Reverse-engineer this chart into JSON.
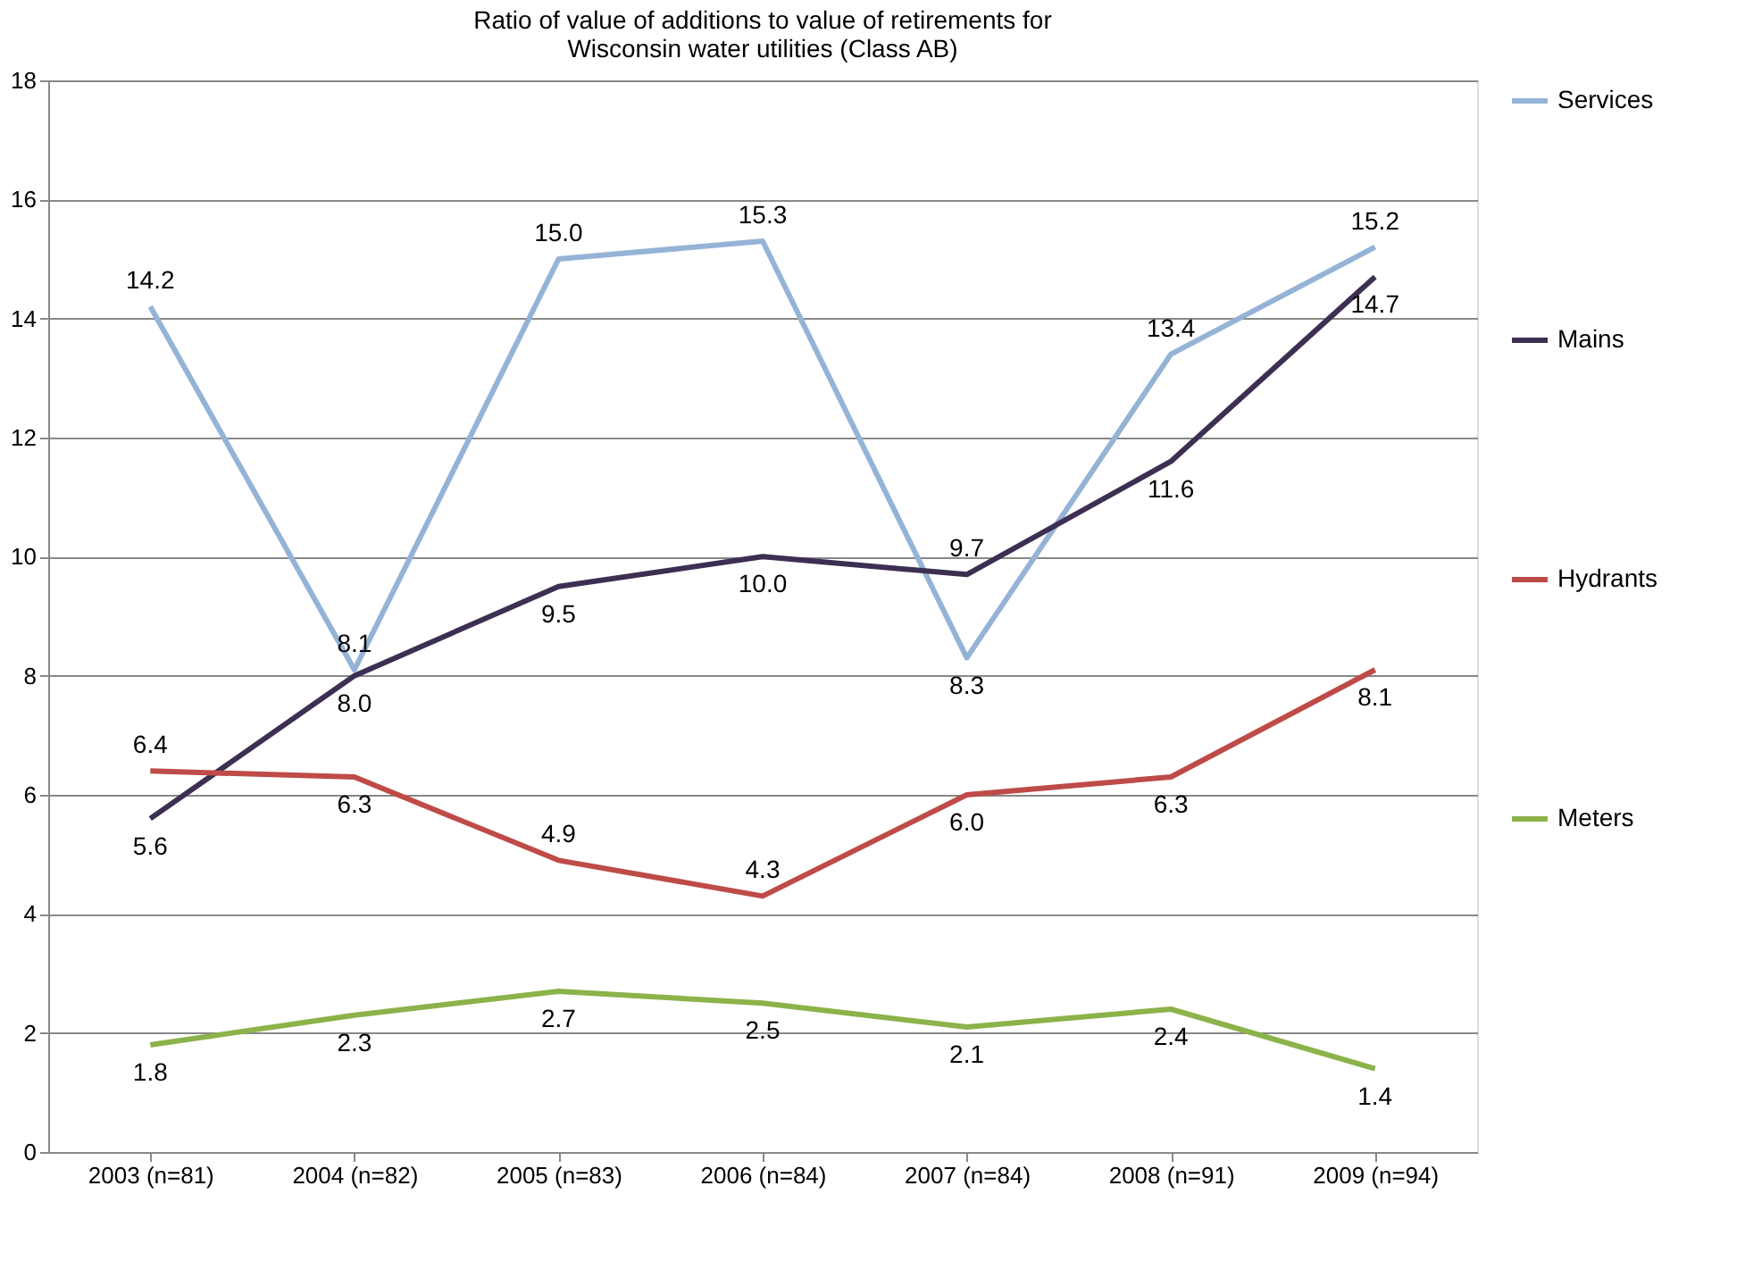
{
  "chart_data": {
    "type": "line",
    "title": "Ratio of value of additions to value of retirements for Wisconsin water utilities (Class AB)",
    "categories": [
      "2003 (n=81)",
      "2004 (n=82)",
      "2005 (n=83)",
      "2006 (n=84)",
      "2007 (n=84)",
      "2008 (n=91)",
      "2009 (n=94)"
    ],
    "series": [
      {
        "name": "Services",
        "color": "#95b3d7",
        "values": [
          14.2,
          8.1,
          15.0,
          15.3,
          8.3,
          13.4,
          15.2
        ],
        "value_labels": [
          "14.2",
          "8.1",
          "15.0",
          "15.3",
          "8.3",
          "13.4",
          "15.2"
        ]
      },
      {
        "name": "Mains",
        "color": "#3d2f52",
        "values": [
          5.6,
          8.0,
          9.5,
          10.0,
          9.7,
          11.6,
          14.7
        ],
        "value_labels": [
          "5.6",
          "8.0",
          "9.5",
          "10.0",
          "9.7",
          "11.6",
          "14.7"
        ]
      },
      {
        "name": "Hydrants",
        "color": "#be4b48",
        "values": [
          6.4,
          6.3,
          4.9,
          4.3,
          6.0,
          6.3,
          8.1
        ],
        "value_labels": [
          "6.4",
          "6.3",
          "4.9",
          "4.3",
          "6.0",
          "6.3",
          "8.1"
        ]
      },
      {
        "name": "Meters",
        "color": "#8cb24a",
        "values": [
          1.8,
          2.3,
          2.7,
          2.5,
          2.1,
          2.4,
          1.4
        ],
        "value_labels": [
          "1.8",
          "2.3",
          "2.7",
          "2.5",
          "2.1",
          "2.4",
          "1.4"
        ]
      }
    ],
    "ylim": [
      0,
      18
    ],
    "yticks": [
      0,
      2,
      4,
      6,
      8,
      10,
      12,
      14,
      16,
      18
    ],
    "grid": "y",
    "legend": "right",
    "marker": "none",
    "line_style": "solid"
  }
}
